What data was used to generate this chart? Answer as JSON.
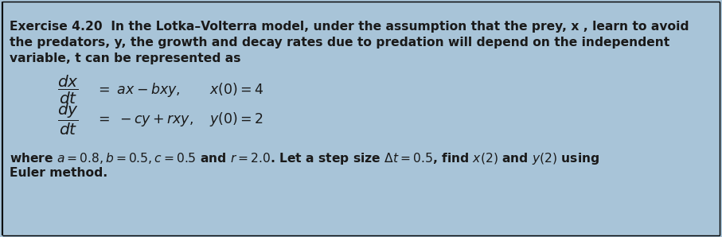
{
  "background_color": "#a8c4d8",
  "border_color": "#000000",
  "text_color": "#1a1a1a",
  "figsize": [
    9.07,
    2.98
  ],
  "dpi": 100,
  "line1": "Exercise 4.20  In the Lotka–Volterra model, under the assumption that the prey, x , learn to avoid",
  "line2": "the predators, y, the growth and decay rates due to predation will depend on the independent",
  "line3": "variable, t can be represented as",
  "eq1_frac": "$\\dfrac{dx}{dt}$",
  "eq1_rest": "$= \\ ax-bxy, \\qquad x(0)=4$",
  "eq2_frac": "$\\dfrac{dy}{dt}$",
  "eq2_rest": "$= \\ -cy+rxy, \\quad y(0)=2$",
  "para2_line1": "where $a=0.8, b=0.5, c=0.5$ and $r=2.0$. Let a step size $\\Delta t=0.5$, find $x(2)$ and $y(2)$ using",
  "para2_line2": "Euler method.",
  "font_size_body": 11.2,
  "font_size_eq": 12.5
}
